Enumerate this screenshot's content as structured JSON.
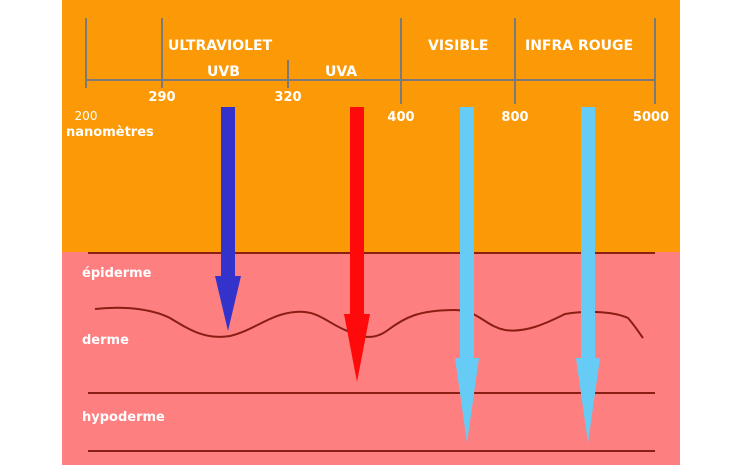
{
  "spectrum": {
    "labels": {
      "ultraviolet": "ULTRAVIOLET",
      "uvb": "UVB",
      "uva": "UVA",
      "visible": "VISIBLE",
      "infrared": "INFRA ROUGE"
    },
    "ticks": [
      "200",
      "290",
      "320",
      "400",
      "800",
      "5000"
    ],
    "unit": "nanomètres"
  },
  "skin": {
    "layers": [
      "épiderme",
      "derme",
      "hypoderme"
    ]
  },
  "colors": {
    "sky": "#fb9a06",
    "skin": "#fe7f80",
    "uvb_arrow": "#3333cc",
    "uva_arrow": "#ff0a0a",
    "visible_arrow": "#66ccf6",
    "infrared_arrow": "#66ccf6",
    "layer_line": "#8a1e12"
  }
}
